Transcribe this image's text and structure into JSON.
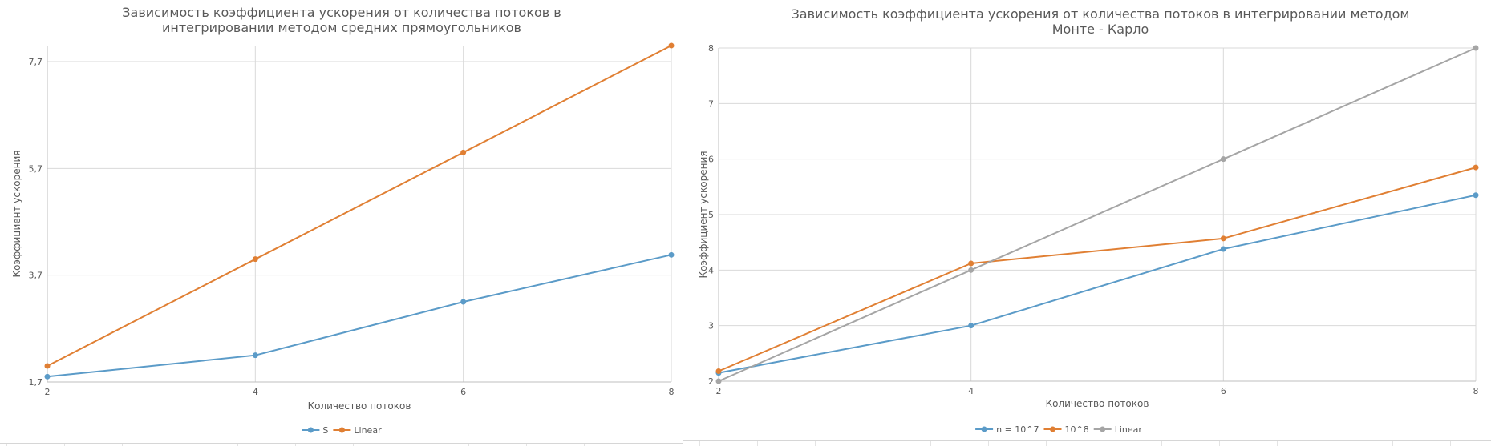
{
  "chart_data": [
    {
      "type": "line",
      "title": "Зависимость коэффициента ускорения от количества потоков в интегрировании методом средних прямоугольников",
      "title_lines": [
        "Зависимость коэффициента ускорения от количества потоков в",
        "интегрировании методом средних прямоугольников"
      ],
      "xlabel": "Количество потоков",
      "ylabel": "Коэффициент ускорения",
      "x": [
        2,
        4,
        6,
        8
      ],
      "x_tick_labels": [
        "2",
        "4",
        "6",
        "8"
      ],
      "xlim": [
        2,
        8
      ],
      "ylim": [
        1.7,
        8.0
      ],
      "y_ticks": [
        1.7,
        3.7,
        5.7,
        7.7
      ],
      "y_tick_labels": [
        "1,7",
        "3,7",
        "5,7",
        "7,7"
      ],
      "grid": true,
      "legend_position": "bottom",
      "series": [
        {
          "name": "S",
          "values": [
            1.8,
            2.2,
            3.2,
            4.08
          ],
          "color": "#5b9bc8"
        },
        {
          "name": "Linear",
          "values": [
            2,
            4,
            6,
            8
          ],
          "color": "#e07f33"
        }
      ]
    },
    {
      "type": "line",
      "title": "Зависимость коэффициента ускорения от количества потоков в интегрировании методом Монте - Карло",
      "title_lines": [
        "Зависимость коэффициента ускорения от количества потоков в интегрировании методом",
        "Монте - Карло"
      ],
      "xlabel": "Количество потоков",
      "ylabel": "Коэффициент ускорения",
      "x": [
        2,
        4,
        6,
        8
      ],
      "x_tick_labels": [
        "2",
        "4",
        "6",
        "8"
      ],
      "xlim": [
        2,
        8
      ],
      "ylim": [
        2,
        8
      ],
      "y_ticks": [
        2,
        3,
        4,
        5,
        6,
        7,
        8
      ],
      "y_tick_labels": [
        "2",
        "3",
        "4",
        "5",
        "6",
        "7",
        "8"
      ],
      "grid": true,
      "legend_position": "bottom",
      "series": [
        {
          "name": "n = 10^7",
          "values": [
            2.15,
            3.0,
            4.38,
            5.35
          ],
          "color": "#5b9bc8"
        },
        {
          "name": "10^8",
          "values": [
            2.18,
            4.12,
            4.57,
            5.85
          ],
          "color": "#e07f33"
        },
        {
          "name": "Linear",
          "values": [
            2,
            4,
            6,
            8
          ],
          "color": "#a5a5a5"
        }
      ]
    }
  ]
}
